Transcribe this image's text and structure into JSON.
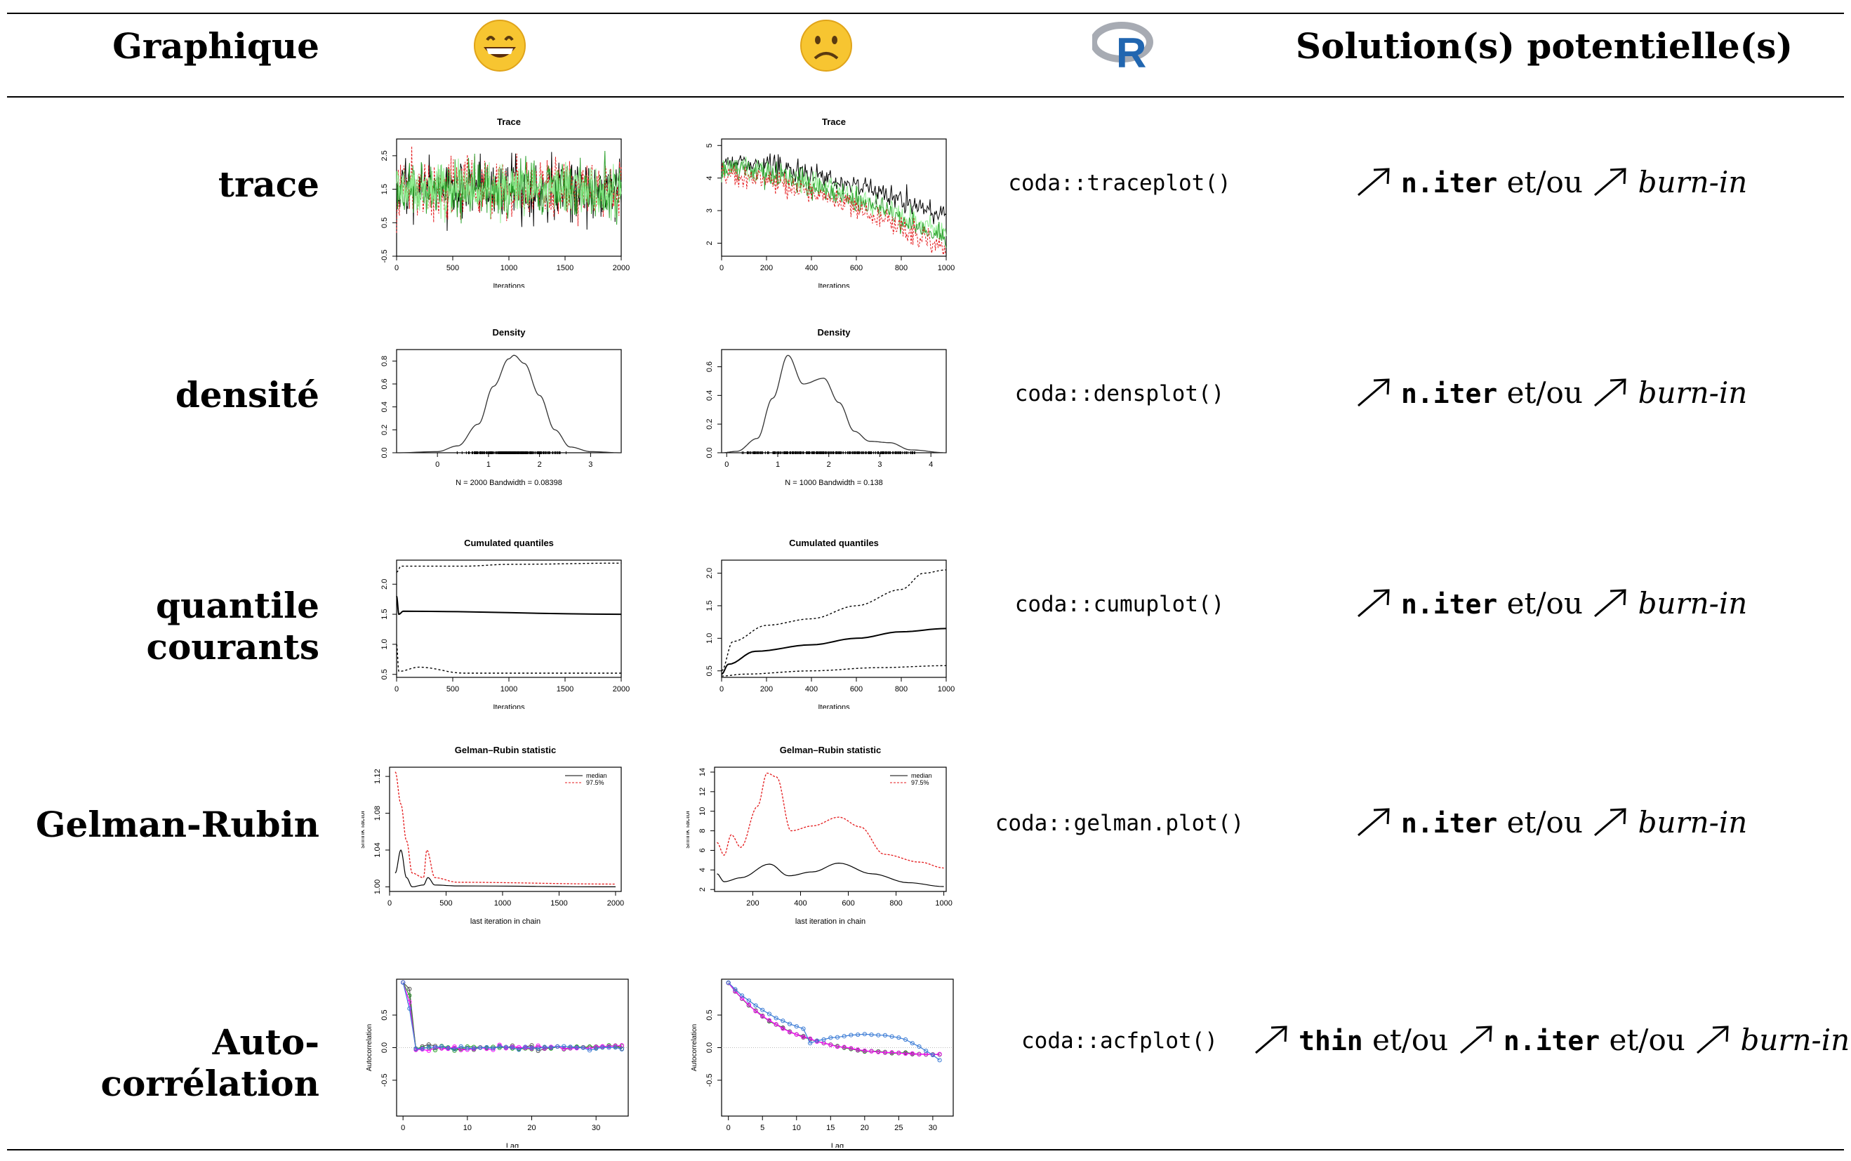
{
  "header": {
    "col1": "Graphique",
    "happy_icon": "grinning-face-emoji",
    "sad_icon": "frowning-face-emoji",
    "r_icon": "r-logo",
    "col4": "Solution(s) potentielle(s)"
  },
  "colors": {
    "series": [
      "#000000",
      "#e41a1c",
      "#2ca02c",
      "#90ee90",
      "#3a7bd5",
      "#ff00ff"
    ],
    "r_blue": "#2166b0",
    "emoji": "#f7c531"
  },
  "rows": [
    {
      "label": "trace",
      "code": "coda::traceplot()",
      "solution": [
        {
          "t": "arrow"
        },
        {
          "t": "mono",
          "v": "n.iter"
        },
        {
          "t": "txt",
          "v": " et/ou "
        },
        {
          "t": "arrow"
        },
        {
          "t": "it",
          "v": "burn-in"
        }
      ]
    },
    {
      "label": "densité",
      "code": "coda::densplot()",
      "solution": [
        {
          "t": "arrow"
        },
        {
          "t": "mono",
          "v": "n.iter"
        },
        {
          "t": "txt",
          "v": " et/ou "
        },
        {
          "t": "arrow"
        },
        {
          "t": "it",
          "v": "burn-in"
        }
      ]
    },
    {
      "label": "quantile courants",
      "code": "coda::cumuplot()",
      "solution": [
        {
          "t": "arrow"
        },
        {
          "t": "mono",
          "v": "n.iter"
        },
        {
          "t": "txt",
          "v": " et/ou "
        },
        {
          "t": "arrow"
        },
        {
          "t": "it",
          "v": "burn-in"
        }
      ]
    },
    {
      "label": "Gelman-Rubin",
      "code": "coda::gelman.plot()",
      "solution": [
        {
          "t": "arrow"
        },
        {
          "t": "mono",
          "v": "n.iter"
        },
        {
          "t": "txt",
          "v": " et/ou "
        },
        {
          "t": "arrow"
        },
        {
          "t": "it",
          "v": "burn-in"
        }
      ]
    },
    {
      "label": "Auto-corrélation",
      "code": "coda::acfplot()",
      "solution": [
        {
          "t": "arrow"
        },
        {
          "t": "mono",
          "v": "thin"
        },
        {
          "t": "txt",
          "v": " et/ou "
        },
        {
          "t": "arrow"
        },
        {
          "t": "mono",
          "v": "n.iter"
        },
        {
          "t": "txt",
          "v": " et/ou "
        },
        {
          "t": "arrow"
        },
        {
          "t": "it",
          "v": "burn-in"
        }
      ]
    }
  ],
  "chart_data": [
    {
      "id": "trace-good",
      "type": "line",
      "title": "Trace",
      "xlabel": "Iterations",
      "ylabel": "",
      "xlim": [
        0,
        2000
      ],
      "ylim": [
        -0.5,
        3
      ],
      "xticks": [
        "0",
        "500",
        "1000",
        "1500",
        "2000"
      ],
      "yticks": [
        "-0.5",
        "0.5",
        "1.5",
        "2.5"
      ],
      "series": [
        {
          "mean": 1.5,
          "sd": 0.45,
          "color": "#000000"
        },
        {
          "mean": 1.5,
          "sd": 0.45,
          "color": "#e41a1c"
        },
        {
          "mean": 1.5,
          "sd": 0.4,
          "color": "#2ca02c"
        },
        {
          "mean": 1.5,
          "sd": 0.35,
          "color": "#90ee90"
        }
      ]
    },
    {
      "id": "trace-bad",
      "type": "line",
      "title": "Trace",
      "xlabel": "Iterations",
      "ylabel": "",
      "xlim": [
        0,
        1000
      ],
      "ylim": [
        1.6,
        5.2
      ],
      "xticks": [
        "0",
        "200",
        "400",
        "600",
        "800",
        "1000"
      ],
      "yticks": [
        "2",
        "3",
        "4",
        "5"
      ],
      "series": [
        {
          "start": 4.5,
          "end": 2.8,
          "color": "#000000"
        },
        {
          "start": 4.3,
          "end": 2.3,
          "color": "#90ee90"
        },
        {
          "start": 4.3,
          "end": 2.1,
          "color": "#2ca02c"
        },
        {
          "start": 4.1,
          "end": 1.8,
          "color": "#e41a1c"
        }
      ]
    },
    {
      "id": "dens-good",
      "type": "line",
      "title": "Density",
      "xlabel": "N = 2000   Bandwidth = 0.08398",
      "ylabel": "",
      "xlim": [
        -0.8,
        3.6
      ],
      "ylim": [
        0,
        0.9
      ],
      "xticks": [
        "0",
        "1",
        "2",
        "3"
      ],
      "yticks": [
        "0.0",
        "0.2",
        "0.4",
        "0.6",
        "0.8"
      ],
      "curve": [
        [
          -0.8,
          0
        ],
        [
          0,
          0.01
        ],
        [
          0.4,
          0.06
        ],
        [
          0.8,
          0.25
        ],
        [
          1.1,
          0.58
        ],
        [
          1.4,
          0.82
        ],
        [
          1.5,
          0.85
        ],
        [
          1.7,
          0.78
        ],
        [
          2.0,
          0.5
        ],
        [
          2.3,
          0.2
        ],
        [
          2.6,
          0.05
        ],
        [
          3.0,
          0.01
        ],
        [
          3.6,
          0
        ]
      ]
    },
    {
      "id": "dens-bad",
      "type": "line",
      "title": "Density",
      "xlabel": "N = 1000   Bandwidth = 0.138",
      "ylabel": "",
      "xlim": [
        -0.1,
        4.3
      ],
      "ylim": [
        0,
        0.72
      ],
      "xticks": [
        "0",
        "1",
        "2",
        "3",
        "4"
      ],
      "yticks": [
        "0.0",
        "0.2",
        "0.4",
        "0.6"
      ],
      "curve": [
        [
          -0.1,
          0
        ],
        [
          0.2,
          0.01
        ],
        [
          0.6,
          0.1
        ],
        [
          0.9,
          0.38
        ],
        [
          1.2,
          0.68
        ],
        [
          1.5,
          0.48
        ],
        [
          1.9,
          0.52
        ],
        [
          2.2,
          0.35
        ],
        [
          2.5,
          0.15
        ],
        [
          2.8,
          0.08
        ],
        [
          3.2,
          0.07
        ],
        [
          3.6,
          0.02
        ],
        [
          4.3,
          0
        ]
      ]
    },
    {
      "id": "cumu-good",
      "type": "line",
      "title": "Cumulated quantiles",
      "xlabel": "Iterations",
      "ylabel": "",
      "xlim": [
        0,
        2000
      ],
      "ylim": [
        0.45,
        2.4
      ],
      "xticks": [
        "0",
        "500",
        "1000",
        "1500",
        "2000"
      ],
      "yticks": [
        "0.5",
        "1.0",
        "1.5",
        "2.0"
      ],
      "median": [
        [
          0,
          1.8
        ],
        [
          20,
          1.5
        ],
        [
          60,
          1.55
        ],
        [
          2000,
          1.5
        ]
      ],
      "upper": [
        [
          0,
          2.2
        ],
        [
          40,
          2.3
        ],
        [
          600,
          2.3
        ],
        [
          1000,
          2.33
        ],
        [
          2000,
          2.35
        ]
      ],
      "lower": [
        [
          0,
          1.0
        ],
        [
          20,
          0.55
        ],
        [
          200,
          0.62
        ],
        [
          600,
          0.52
        ],
        [
          2000,
          0.52
        ]
      ]
    },
    {
      "id": "cumu-bad",
      "type": "line",
      "title": "Cumulated quantiles",
      "xlabel": "Iterations",
      "ylabel": "",
      "xlim": [
        0,
        1000
      ],
      "ylim": [
        0.4,
        2.2
      ],
      "xticks": [
        "0",
        "200",
        "400",
        "600",
        "800",
        "1000"
      ],
      "yticks": [
        "0.5",
        "1.0",
        "1.5",
        "2.0"
      ],
      "median": [
        [
          0,
          0.45
        ],
        [
          30,
          0.6
        ],
        [
          150,
          0.8
        ],
        [
          400,
          0.9
        ],
        [
          600,
          1.0
        ],
        [
          800,
          1.1
        ],
        [
          1000,
          1.15
        ]
      ],
      "upper": [
        [
          0,
          0.5
        ],
        [
          50,
          0.95
        ],
        [
          200,
          1.2
        ],
        [
          400,
          1.3
        ],
        [
          600,
          1.5
        ],
        [
          800,
          1.75
        ],
        [
          900,
          2.0
        ],
        [
          1000,
          2.05
        ]
      ],
      "lower": [
        [
          0,
          0.42
        ],
        [
          100,
          0.45
        ],
        [
          400,
          0.5
        ],
        [
          700,
          0.55
        ],
        [
          1000,
          0.58
        ]
      ]
    },
    {
      "id": "gelman-good",
      "type": "line",
      "title": "Gelman–Rubin statistic",
      "xlabel": "last iteration in chain",
      "ylabel": "shrink factor",
      "xlim": [
        0,
        2050
      ],
      "ylim": [
        0.995,
        1.13
      ],
      "xticks": [
        "0",
        "500",
        "1000",
        "1500",
        "2000"
      ],
      "yticks": [
        "1.00",
        "1.04",
        "1.08",
        "1.12"
      ],
      "legend": [
        "median",
        "97.5%"
      ],
      "median": [
        [
          50,
          1.015
        ],
        [
          100,
          1.04
        ],
        [
          150,
          1.01
        ],
        [
          200,
          1.0
        ],
        [
          300,
          1.002
        ],
        [
          340,
          1.01
        ],
        [
          400,
          1.002
        ],
        [
          600,
          1.001
        ],
        [
          2000,
          1.0
        ]
      ],
      "upper": [
        [
          50,
          1.125
        ],
        [
          100,
          1.09
        ],
        [
          150,
          1.05
        ],
        [
          200,
          1.015
        ],
        [
          300,
          1.01
        ],
        [
          330,
          1.04
        ],
        [
          400,
          1.01
        ],
        [
          600,
          1.005
        ],
        [
          2000,
          1.003
        ]
      ]
    },
    {
      "id": "gelman-bad",
      "type": "line",
      "title": "Gelman–Rubin statistic",
      "xlabel": "last iteration in chain",
      "ylabel": "shrink factor",
      "xlim": [
        40,
        1010
      ],
      "ylim": [
        1.8,
        14.5
      ],
      "xticks": [
        "200",
        "400",
        "600",
        "800",
        "1000"
      ],
      "yticks": [
        "2",
        "4",
        "6",
        "8",
        "10",
        "12",
        "14"
      ],
      "legend": [
        "median",
        "97.5%"
      ],
      "median": [
        [
          50,
          3.6
        ],
        [
          80,
          2.8
        ],
        [
          150,
          3.2
        ],
        [
          270,
          4.6
        ],
        [
          350,
          3.4
        ],
        [
          450,
          3.8
        ],
        [
          560,
          4.7
        ],
        [
          700,
          3.6
        ],
        [
          850,
          2.7
        ],
        [
          1000,
          2.3
        ]
      ],
      "upper": [
        [
          50,
          6.8
        ],
        [
          80,
          5.5
        ],
        [
          110,
          7.6
        ],
        [
          150,
          6.3
        ],
        [
          220,
          10.5
        ],
        [
          260,
          13.9
        ],
        [
          300,
          13.5
        ],
        [
          360,
          8.0
        ],
        [
          450,
          8.5
        ],
        [
          560,
          9.4
        ],
        [
          650,
          8.4
        ],
        [
          750,
          5.6
        ],
        [
          900,
          4.8
        ],
        [
          1000,
          4.2
        ]
      ]
    },
    {
      "id": "acf-good",
      "type": "line",
      "title": "",
      "xlabel": "Lag",
      "ylabel": "Autocorrelation",
      "xlim": [
        -1,
        35
      ],
      "ylim": [
        -1.05,
        1.05
      ],
      "xticks": [
        "0",
        "10",
        "20",
        "30"
      ],
      "yticks": [
        "-0.5",
        "0.0",
        "0.5"
      ],
      "lags": 34,
      "decay": "fast"
    },
    {
      "id": "acf-bad",
      "type": "line",
      "title": "",
      "xlabel": "Lag",
      "ylabel": "Autocorrelation",
      "xlim": [
        -1,
        33
      ],
      "ylim": [
        -1.05,
        1.05
      ],
      "xticks": [
        "0",
        "5",
        "10",
        "15",
        "20",
        "25",
        "30"
      ],
      "yticks": [
        "-0.5",
        "0.0",
        "0.5"
      ],
      "lags": 31,
      "decay": "slow"
    }
  ]
}
